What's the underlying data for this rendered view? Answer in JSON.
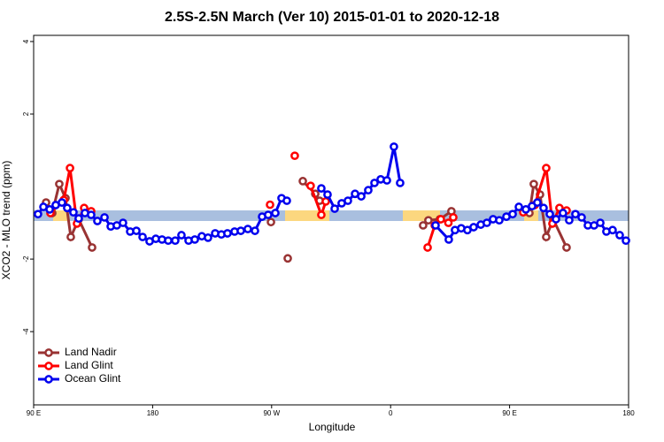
{
  "chart_data": {
    "type": "line",
    "title": "2.5S-2.5N March (Ver 10)   2015-01-01 to 2020-12-18",
    "xlabel": "Longitude",
    "ylabel": "XCO2 - MLO trend (ppm)",
    "xlim": [
      90,
      540
    ],
    "ylim": [
      -6.02,
      4.17
    ],
    "xticks": [
      {
        "value": 90,
        "label": "90 E"
      },
      180,
      {
        "value": 270,
        "label": "90 W"
      },
      {
        "value": 360,
        "label": "0"
      },
      {
        "value": 450,
        "label": "90 E"
      },
      {
        "value": 540,
        "label": "180"
      }
    ],
    "yticks": [
      -4,
      -2,
      2,
      4
    ],
    "legend": "bottom-left",
    "series": [
      {
        "name": "Land Nadir",
        "color": "#993333",
        "x": [
          99.4,
          104.1,
          109.4,
          114.1,
          118.1,
          124.1,
          134.2,
          269.5,
          282.2,
          293.6,
          303,
          306.3,
          384.6,
          388.6,
          397.3,
          406,
          461,
          465,
          468.3,
          473,
          477.7,
          483,
          493.1
        ],
        "values": [
          -0.44,
          -0.73,
          0.07,
          -0.32,
          -1.39,
          -0.9,
          -1.68,
          -0.98,
          -1.98,
          0.15,
          -0.2,
          -0.39,
          -1.07,
          -0.93,
          -0.9,
          -0.68,
          -0.66,
          -0.73,
          0.07,
          -0.22,
          -1.39,
          -0.9,
          -1.68
        ]
      },
      {
        "name": "Land Glint",
        "color": "#ff0000",
        "x": [
          102.7,
          112.8,
          117.5,
          122.8,
          128.2,
          133.5,
          268.8,
          287.5,
          299.5,
          307.6,
          311,
          388,
          393.4,
          398,
          403.7,
          407.4,
          460.3,
          469,
          477.7,
          482.4,
          487.7,
          493.1
        ],
        "values": [
          -0.73,
          -0.37,
          0.51,
          -1.02,
          -0.59,
          -0.68,
          -0.5,
          0.85,
          0.02,
          -0.78,
          -0.41,
          -1.68,
          -1.07,
          -0.9,
          -1.0,
          -0.85,
          -0.71,
          -0.51,
          0.51,
          -1.02,
          -0.59,
          -0.66
        ]
      },
      {
        "name": "Ocean Glint",
        "color": "#0000ee",
        "x": [
          93.3,
          97.4,
          102.1,
          106.7,
          111.4,
          115.4,
          120.1,
          124.1,
          128.8,
          133.5,
          138.2,
          143.6,
          148.3,
          152.9,
          157.6,
          163,
          167.7,
          172.4,
          177.7,
          182.4,
          187.1,
          191.8,
          197.1,
          201.8,
          207.2,
          211.9,
          217.2,
          221.9,
          227.3,
          232,
          236.6,
          242,
          246.7,
          252,
          257.4,
          262.8,
          267.4,
          272.8,
          277.5,
          281.5,
          307.6,
          312.3,
          317.7,
          323,
          327.7,
          333.1,
          337.8,
          343.1,
          347.8,
          352.5,
          357.2,
          362.5,
          367.2,
          394,
          404,
          408.7,
          413.4,
          418.1,
          422.8,
          428.2,
          432.8,
          437.5,
          442.2,
          447.6,
          452.3,
          457,
          462.3,
          467,
          471,
          475.7,
          480.4,
          485.1,
          490.4,
          495.1,
          499.8,
          504.5,
          509.2,
          513.9,
          518.6,
          523.2,
          527.9,
          533.3,
          538
        ],
        "values": [
          -0.76,
          -0.56,
          -0.63,
          -0.51,
          -0.44,
          -0.59,
          -0.71,
          -0.88,
          -0.73,
          -0.78,
          -0.95,
          -0.85,
          -1.1,
          -1.07,
          -1.0,
          -1.24,
          -1.22,
          -1.39,
          -1.51,
          -1.44,
          -1.46,
          -1.49,
          -1.49,
          -1.34,
          -1.49,
          -1.46,
          -1.37,
          -1.41,
          -1.29,
          -1.32,
          -1.29,
          -1.24,
          -1.22,
          -1.17,
          -1.22,
          -0.83,
          -0.78,
          -0.73,
          -0.32,
          -0.39,
          -0.05,
          -0.22,
          -0.61,
          -0.46,
          -0.39,
          -0.2,
          -0.27,
          -0.1,
          0.1,
          0.2,
          0.17,
          1.1,
          0.1,
          -1.07,
          -1.46,
          -1.2,
          -1.15,
          -1.2,
          -1.12,
          -1.05,
          -1.0,
          -0.9,
          -0.93,
          -0.83,
          -0.76,
          -0.56,
          -0.63,
          -0.54,
          -0.44,
          -0.59,
          -0.76,
          -0.9,
          -0.73,
          -0.93,
          -0.76,
          -0.85,
          -1.07,
          -1.07,
          -1.0,
          -1.24,
          -1.2,
          -1.34,
          -1.49
        ]
      }
    ]
  }
}
